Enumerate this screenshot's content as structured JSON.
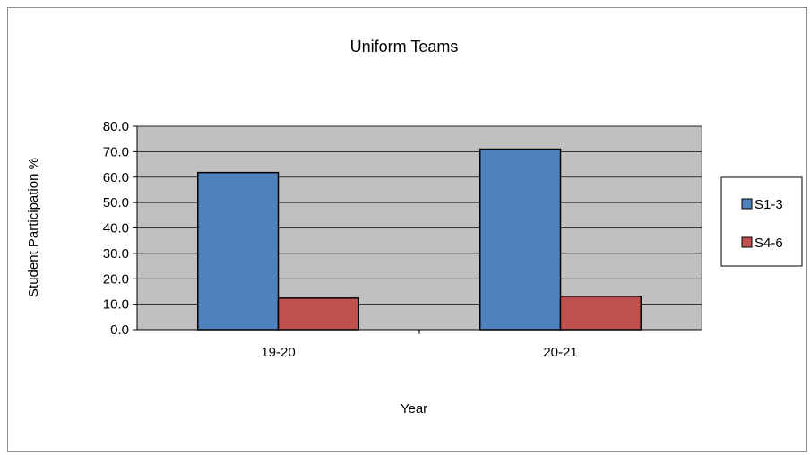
{
  "chart_data": {
    "type": "bar",
    "title": "Uniform Teams",
    "xlabel": "Year",
    "ylabel": "Student Participation %",
    "categories": [
      "19-20",
      "20-21"
    ],
    "series": [
      {
        "name": "S1-3",
        "values": [
          61.8,
          71.0
        ],
        "color": "#4f81bd"
      },
      {
        "name": "S4-6",
        "values": [
          12.4,
          13.1
        ],
        "color": "#c0504d"
      }
    ],
    "ylim": [
      0,
      80
    ],
    "yticks": [
      "0.0",
      "10.0",
      "20.0",
      "30.0",
      "40.0",
      "50.0",
      "60.0",
      "70.0",
      "80.0"
    ],
    "grid": true,
    "plot_background": "#c0c0c0",
    "legend_position": "right"
  }
}
